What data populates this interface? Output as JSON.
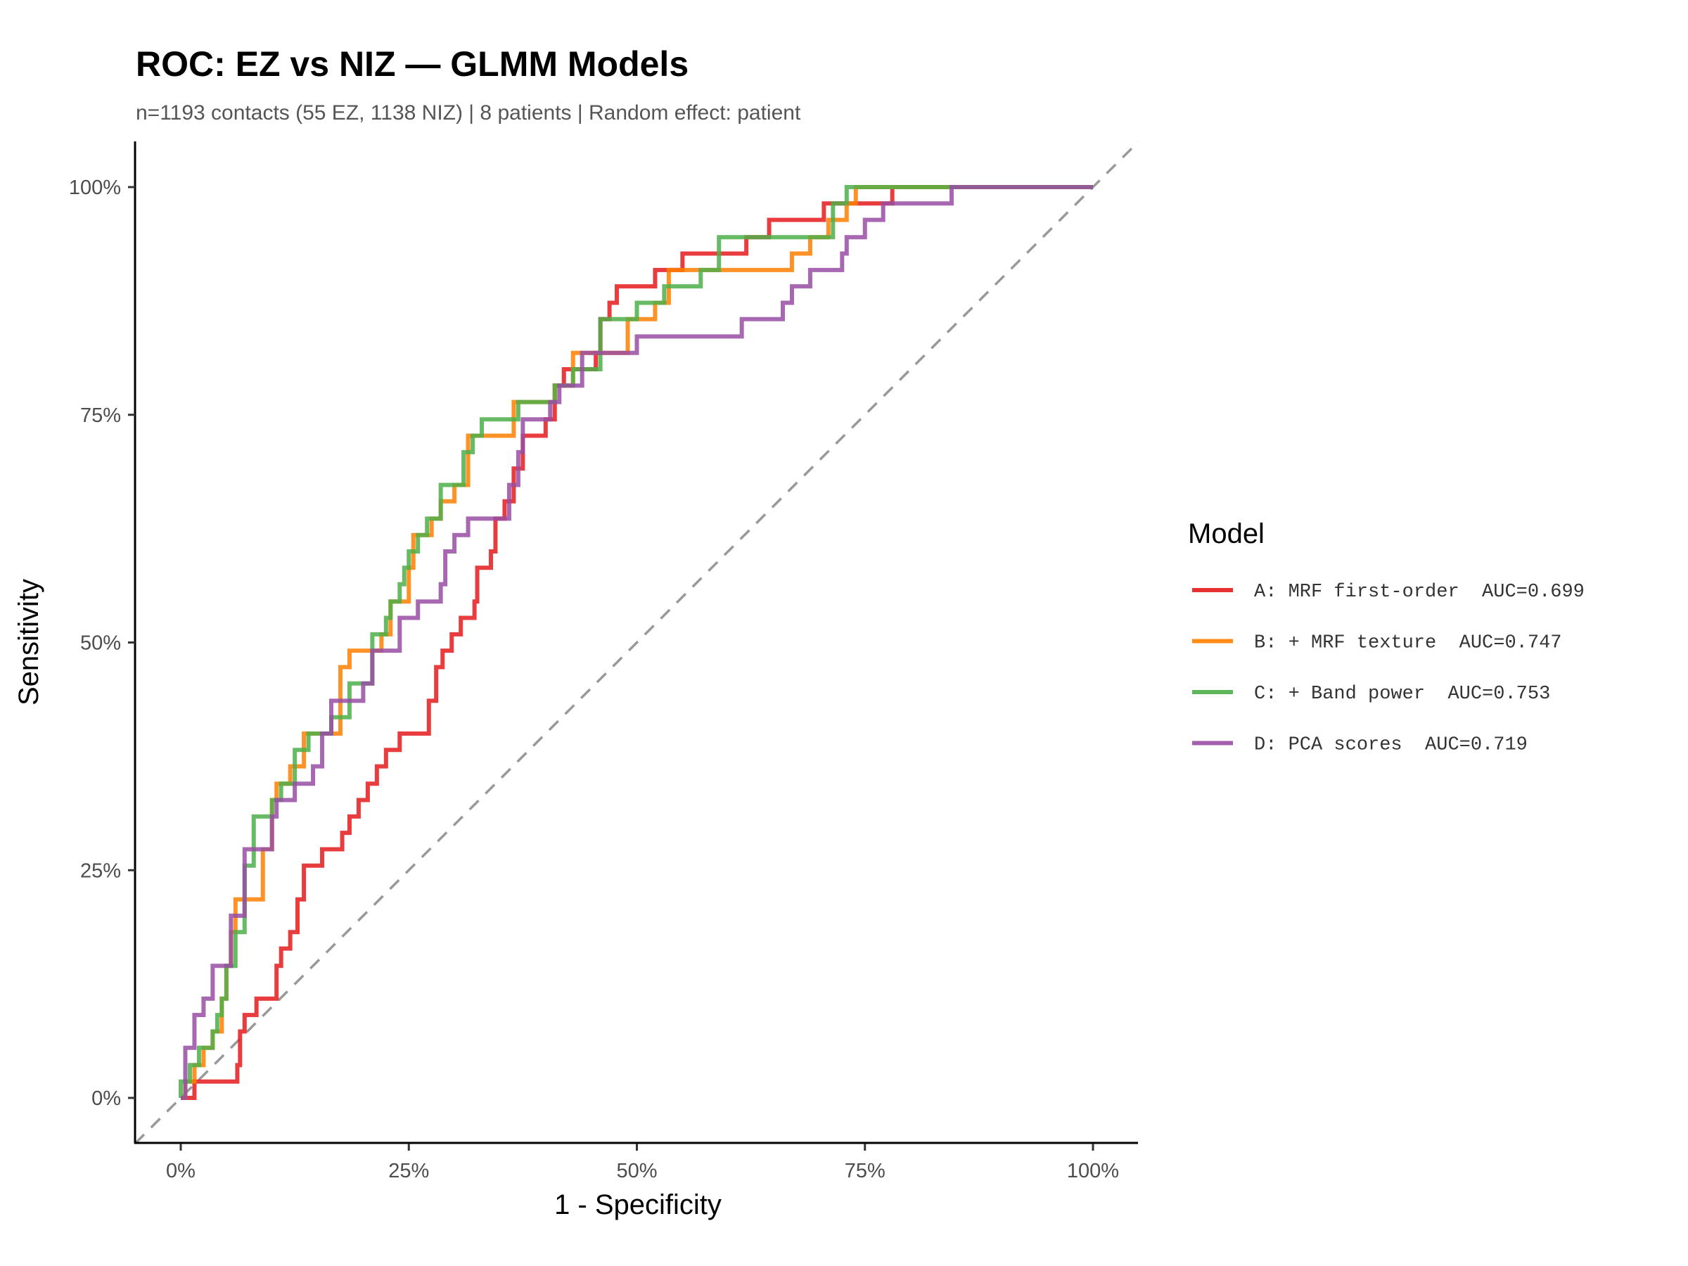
{
  "chart_data": {
    "type": "line",
    "title": "ROC: EZ vs NIZ — GLMM Models",
    "subtitle": "n=1193 contacts (55 EZ, 1138 NIZ) | 8 patients | Random effect: patient",
    "xlabel": "1 - Specificity",
    "ylabel": "Sensitivity",
    "xlim": [
      -5,
      105
    ],
    "ylim": [
      -5,
      105
    ],
    "xticks": [
      {
        "v": 0,
        "label": "0%"
      },
      {
        "v": 25,
        "label": "25%"
      },
      {
        "v": 50,
        "label": "50%"
      },
      {
        "v": 75,
        "label": "75%"
      },
      {
        "v": 100,
        "label": "100%"
      }
    ],
    "yticks": [
      {
        "v": 0,
        "label": "0%"
      },
      {
        "v": 25,
        "label": "25%"
      },
      {
        "v": 50,
        "label": "50%"
      },
      {
        "v": 75,
        "label": "75%"
      },
      {
        "v": 100,
        "label": "100%"
      }
    ],
    "legend_title": "Model",
    "legend_position": "right",
    "reference_line": {
      "style": "dashed",
      "color": "#999999",
      "from": [
        -5,
        -5
      ],
      "to": [
        105,
        105
      ]
    },
    "series": [
      {
        "name": "A: MRF first-order  AUC=0.699",
        "color": "#E41A1C",
        "points": [
          [
            0,
            0
          ],
          [
            1.5,
            1.8
          ],
          [
            6,
            1.8
          ],
          [
            6.2,
            3.6
          ],
          [
            6.5,
            7.3
          ],
          [
            7,
            9.1
          ],
          [
            8.3,
            10.9
          ],
          [
            10,
            10.9
          ],
          [
            10.5,
            14.5
          ],
          [
            11,
            16.4
          ],
          [
            12,
            18.2
          ],
          [
            12.8,
            21.8
          ],
          [
            13.5,
            25.5
          ],
          [
            15.5,
            27.3
          ],
          [
            17.7,
            29.1
          ],
          [
            18.5,
            30.9
          ],
          [
            19.5,
            32.7
          ],
          [
            20.5,
            34.5
          ],
          [
            21.5,
            36.4
          ],
          [
            22.5,
            38.2
          ],
          [
            24,
            40
          ],
          [
            27,
            40
          ],
          [
            27.2,
            43.6
          ],
          [
            28,
            47.3
          ],
          [
            28.7,
            49.1
          ],
          [
            29.7,
            50.9
          ],
          [
            30.7,
            52.7
          ],
          [
            32.2,
            54.5
          ],
          [
            32.5,
            58.2
          ],
          [
            34,
            60
          ],
          [
            34.5,
            63.6
          ],
          [
            35.5,
            65.5
          ],
          [
            36.5,
            69.1
          ],
          [
            37.5,
            72.7
          ],
          [
            40,
            74.5
          ],
          [
            41,
            78.2
          ],
          [
            42,
            80
          ],
          [
            45.5,
            81.8
          ],
          [
            46,
            85.5
          ],
          [
            47,
            87.3
          ],
          [
            47.8,
            89.1
          ],
          [
            51,
            89.1
          ],
          [
            52,
            90.9
          ],
          [
            55,
            92.7
          ],
          [
            59,
            92.7
          ],
          [
            62,
            94.5
          ],
          [
            64.5,
            96.4
          ],
          [
            70,
            96.4
          ],
          [
            70.5,
            98.2
          ],
          [
            76,
            98.2
          ],
          [
            78,
            100
          ],
          [
            100,
            100
          ]
        ]
      },
      {
        "name": "B: + MRF texture  AUC=0.747",
        "color": "#FF7F00",
        "points": [
          [
            0,
            0
          ],
          [
            0.5,
            1.8
          ],
          [
            1.5,
            3.6
          ],
          [
            2.5,
            5.5
          ],
          [
            3.5,
            7.3
          ],
          [
            4.5,
            10.9
          ],
          [
            5,
            14.5
          ],
          [
            5.5,
            18.2
          ],
          [
            6,
            21.8
          ],
          [
            8.5,
            21.8
          ],
          [
            9,
            27.3
          ],
          [
            10,
            32.7
          ],
          [
            10.5,
            34.5
          ],
          [
            12,
            36.4
          ],
          [
            13.5,
            40
          ],
          [
            15,
            40
          ],
          [
            17.5,
            47.3
          ],
          [
            18.5,
            49.1
          ],
          [
            21,
            49.1
          ],
          [
            22,
            50.9
          ],
          [
            23,
            54.5
          ],
          [
            25,
            58.2
          ],
          [
            25.5,
            61.8
          ],
          [
            27.5,
            63.6
          ],
          [
            28.5,
            65.5
          ],
          [
            30,
            67.3
          ],
          [
            31.5,
            72.7
          ],
          [
            35,
            72.7
          ],
          [
            36.5,
            76.4
          ],
          [
            41,
            78.2
          ],
          [
            43,
            81.8
          ],
          [
            48,
            81.8
          ],
          [
            49,
            85.5
          ],
          [
            52,
            87.3
          ],
          [
            53.5,
            90.9
          ],
          [
            66,
            90.9
          ],
          [
            67,
            92.7
          ],
          [
            69,
            94.5
          ],
          [
            71,
            96.4
          ],
          [
            73,
            98.2
          ],
          [
            74,
            100
          ],
          [
            100,
            100
          ]
        ]
      },
      {
        "name": "C: + Band power  AUC=0.753",
        "color": "#4DAF4A",
        "points": [
          [
            0,
            0
          ],
          [
            0,
            1.8
          ],
          [
            1,
            3.6
          ],
          [
            2,
            5.5
          ],
          [
            3.5,
            7.3
          ],
          [
            4,
            9.1
          ],
          [
            4.5,
            10.9
          ],
          [
            5,
            14.5
          ],
          [
            6,
            18.2
          ],
          [
            7,
            25.5
          ],
          [
            8,
            30.9
          ],
          [
            10,
            32.7
          ],
          [
            11,
            34.5
          ],
          [
            12.5,
            38.2
          ],
          [
            14,
            40
          ],
          [
            16.5,
            41.8
          ],
          [
            18.5,
            45.5
          ],
          [
            21,
            50.9
          ],
          [
            22.5,
            52.7
          ],
          [
            23,
            54.5
          ],
          [
            24,
            56.4
          ],
          [
            24.5,
            58.2
          ],
          [
            25,
            60
          ],
          [
            26,
            61.8
          ],
          [
            27,
            63.6
          ],
          [
            28.5,
            67.3
          ],
          [
            31,
            70.9
          ],
          [
            32,
            72.7
          ],
          [
            33,
            74.5
          ],
          [
            37,
            76.4
          ],
          [
            41,
            78.2
          ],
          [
            43,
            80
          ],
          [
            46,
            85.5
          ],
          [
            50,
            87.3
          ],
          [
            53,
            89.1
          ],
          [
            57,
            90.9
          ],
          [
            59,
            94.5
          ],
          [
            70,
            94.5
          ],
          [
            71.5,
            98.2
          ],
          [
            73,
            100
          ],
          [
            100,
            100
          ]
        ]
      },
      {
        "name": "D: PCA scores  AUC=0.719",
        "color": "#984EA3",
        "points": [
          [
            0,
            0
          ],
          [
            0.5,
            5.5
          ],
          [
            1.5,
            9.1
          ],
          [
            2.5,
            10.9
          ],
          [
            3.5,
            14.5
          ],
          [
            5.5,
            16.4
          ],
          [
            5.5,
            20
          ],
          [
            7,
            27.3
          ],
          [
            10,
            30.9
          ],
          [
            10.5,
            32.7
          ],
          [
            12.5,
            34.5
          ],
          [
            14.5,
            36.4
          ],
          [
            15.5,
            40
          ],
          [
            16.5,
            43.6
          ],
          [
            20,
            45.5
          ],
          [
            21,
            49.1
          ],
          [
            24,
            52.7
          ],
          [
            26,
            54.5
          ],
          [
            28.5,
            56.4
          ],
          [
            29,
            60
          ],
          [
            30,
            61.8
          ],
          [
            31.5,
            63.6
          ],
          [
            35.5,
            63.6
          ],
          [
            36,
            67.3
          ],
          [
            37,
            70.9
          ],
          [
            37.5,
            74.5
          ],
          [
            40.5,
            76.4
          ],
          [
            41.5,
            78.2
          ],
          [
            44,
            81.8
          ],
          [
            50,
            83.6
          ],
          [
            61,
            83.6
          ],
          [
            61.5,
            85.5
          ],
          [
            66,
            87.3
          ],
          [
            67,
            89.1
          ],
          [
            69,
            90.9
          ],
          [
            72.5,
            92.7
          ],
          [
            73,
            94.5
          ],
          [
            75,
            96.4
          ],
          [
            77,
            98.2
          ],
          [
            84.5,
            98.2
          ],
          [
            84.5,
            100
          ],
          [
            100,
            100
          ]
        ]
      }
    ]
  }
}
